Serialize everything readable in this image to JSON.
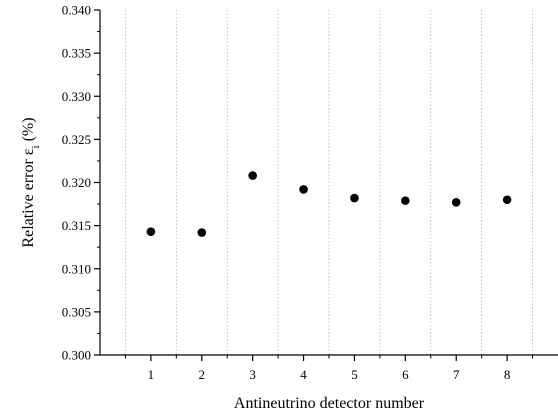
{
  "chart_data": {
    "type": "scatter",
    "title": "",
    "xlabel": "Antineutrino detector number",
    "ylabel": "Relative error ε",
    "ylabel_subscript": "i",
    "ylabel_suffix": " (%)",
    "xlim": [
      0,
      9
    ],
    "ylim": [
      0.3,
      0.34
    ],
    "xticks": [
      1,
      2,
      3,
      4,
      5,
      6,
      7,
      8
    ],
    "yticks": [
      "0.300",
      "0.305",
      "0.310",
      "0.315",
      "0.320",
      "0.325",
      "0.330",
      "0.335",
      "0.340"
    ],
    "grid": "vertical dotted lines at half-integer x positions",
    "marker_color": "#000000",
    "series": [
      {
        "x": [
          1,
          2,
          3,
          4,
          5,
          6,
          7,
          8
        ],
        "y": [
          0.3143,
          0.3142,
          0.3208,
          0.3192,
          0.3182,
          0.3179,
          0.3177,
          0.318
        ]
      }
    ]
  }
}
